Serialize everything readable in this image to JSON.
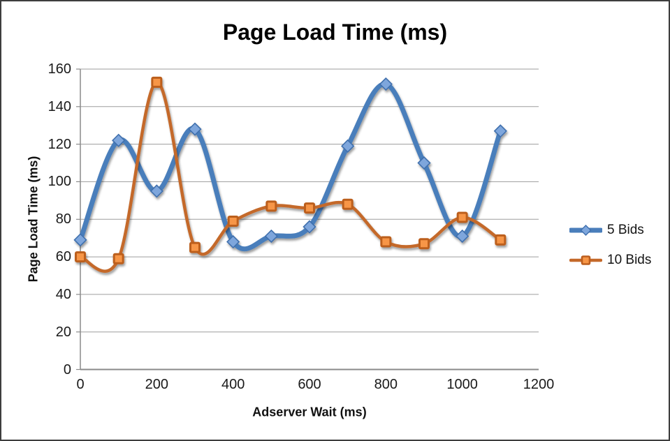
{
  "chart_data": {
    "type": "line",
    "title": "Page Load Time (ms)",
    "xlabel": "Adserver Wait (ms)",
    "ylabel": "Page Load Time (ms)",
    "x": [
      0,
      100,
      200,
      300,
      400,
      500,
      600,
      700,
      800,
      900,
      1000,
      1100
    ],
    "series": [
      {
        "name": "5 Bids",
        "values": [
          69,
          122,
          95,
          128,
          68,
          71,
          76,
          119,
          152,
          110,
          71,
          127
        ],
        "color": "#4A7EBB",
        "marker": "diamond",
        "marker_fill": "#7EA6DC",
        "marker_stroke": "#3F6FAD",
        "line_width": 7
      },
      {
        "name": "10 Bids",
        "values": [
          60,
          59,
          153,
          65,
          79,
          87,
          86,
          88,
          68,
          67,
          81,
          69
        ],
        "color": "#C4692A",
        "marker": "square",
        "marker_fill": "#F79646",
        "marker_stroke": "#BC5E1E",
        "line_width": 4.5
      }
    ],
    "x_ticks": [
      0,
      200,
      400,
      600,
      800,
      1000,
      1200
    ],
    "y_ticks": [
      0,
      20,
      40,
      60,
      80,
      100,
      120,
      140,
      160
    ],
    "xlim": [
      0,
      1200
    ],
    "ylim": [
      0,
      160
    ],
    "smooth": true,
    "grid": "horizontal",
    "legend_position": "right",
    "gridline_color": "#9D9D9D",
    "axis_color": "#8A8A8A",
    "text_color": "#1a1a1a",
    "background": "#ffffff",
    "border_color": "#3d3d3d"
  }
}
